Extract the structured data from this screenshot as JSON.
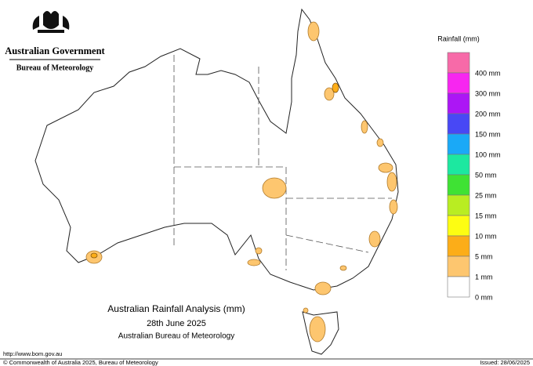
{
  "header": {
    "agency": "Australian Government",
    "bureau": "Bureau of Meteorology"
  },
  "legend": {
    "title": "Rainfall (mm)",
    "colors": [
      "#f76aa8",
      "#f726f0",
      "#ac16f5",
      "#4848f5",
      "#1aa9f7",
      "#1ce8a0",
      "#3fe234",
      "#b9ed22",
      "#fdfd12",
      "#fcad18",
      "#fdc66f",
      "#ffffff"
    ],
    "labels": [
      "400 mm",
      "300 mm",
      "200 mm",
      "150 mm",
      "100 mm",
      "50 mm",
      "25 mm",
      "15 mm",
      "10 mm",
      "5 mm",
      "1 mm",
      "0 mm"
    ]
  },
  "title": {
    "line1": "Australian Rainfall Analysis (mm)",
    "line2": "28th June 2025",
    "line3": "Australian Bureau of Meteorology"
  },
  "footer": {
    "url": "http://www.bom.gov.au",
    "copyright": "© Commonwealth of Australia 2025, Bureau of Meteorology",
    "issued": "Issued: 28/06/2025"
  }
}
